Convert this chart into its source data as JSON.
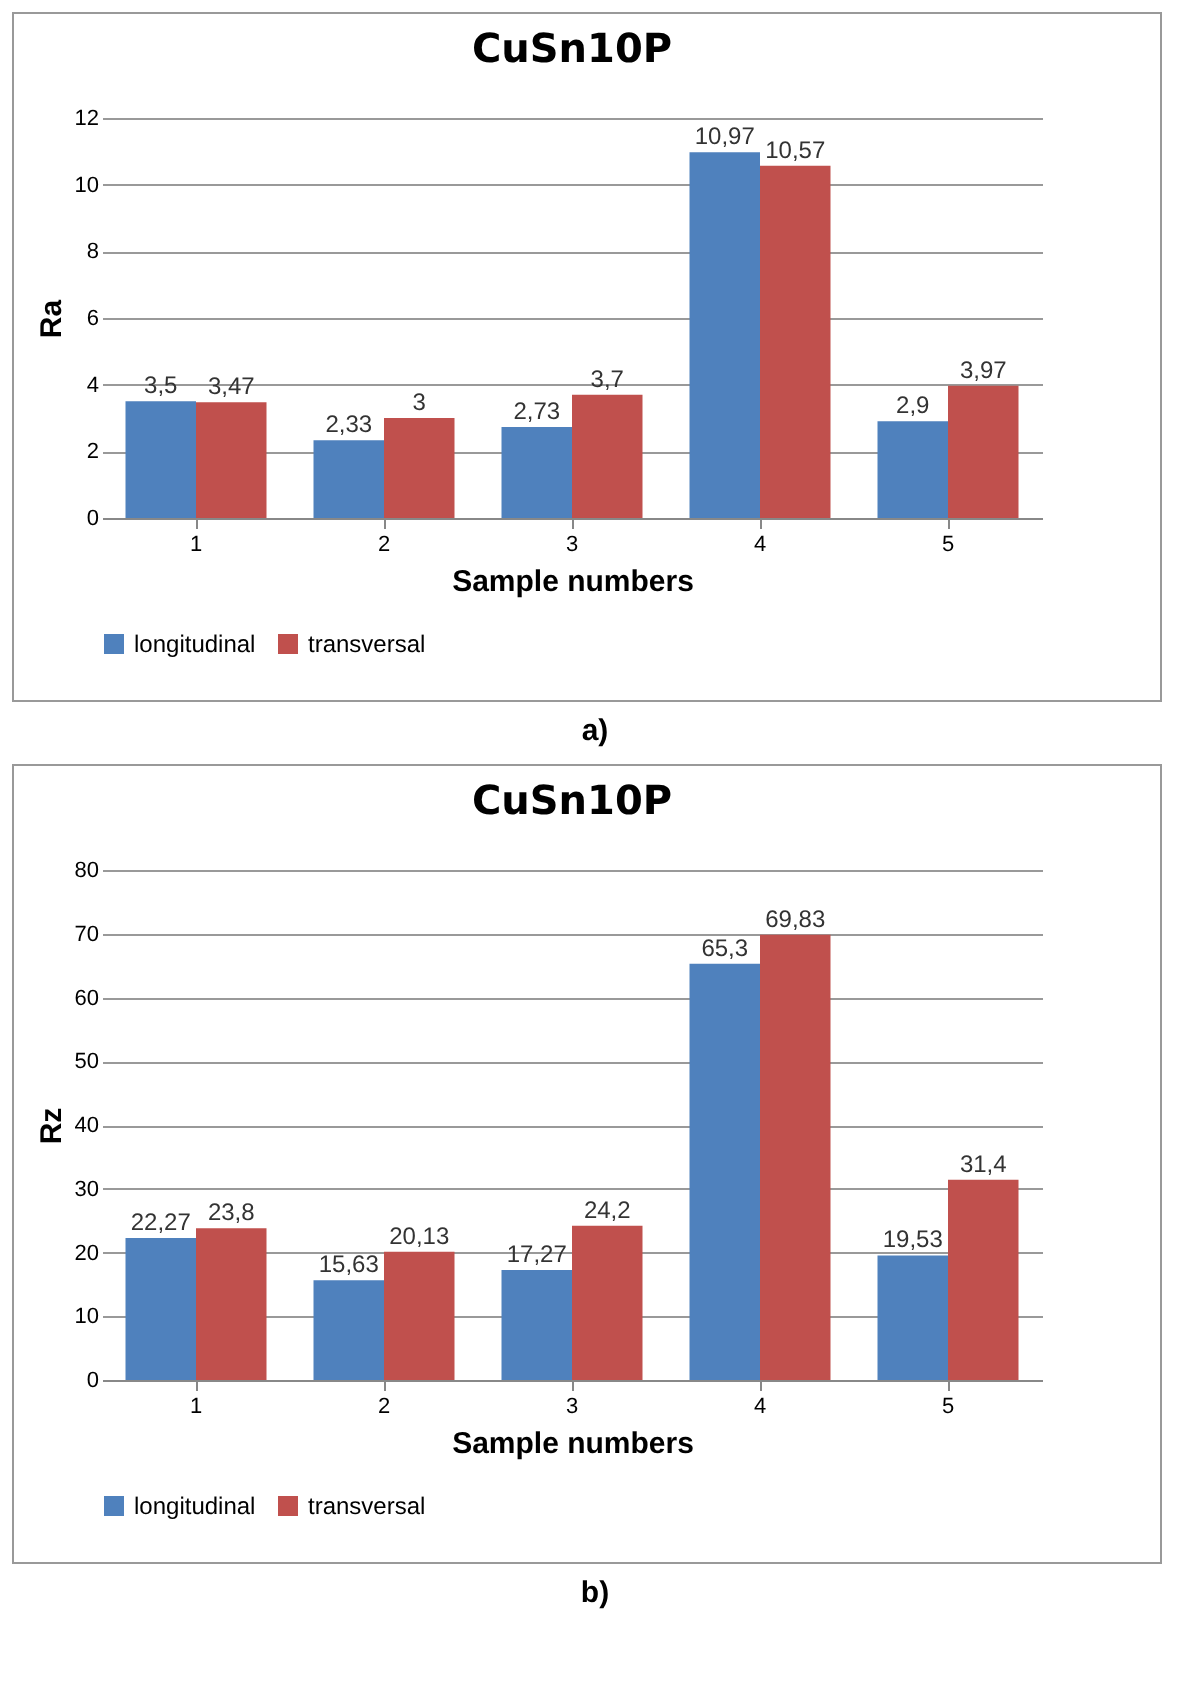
{
  "chart_data": [
    {
      "type": "bar",
      "title": "CuSn10P",
      "xlabel": "Sample numbers",
      "ylabel": "Ra",
      "categories": [
        "1",
        "2",
        "3",
        "4",
        "5"
      ],
      "series": [
        {
          "name": "longitudinal",
          "color": "#4f81bd",
          "values": [
            3.5,
            2.33,
            2.73,
            10.97,
            2.9
          ],
          "value_labels": [
            "3,5",
            "2,33",
            "2,73",
            "10,97",
            "2,9"
          ]
        },
        {
          "name": "transversal",
          "color": "#c0504d",
          "values": [
            3.47,
            3,
            3.7,
            10.57,
            3.97
          ],
          "value_labels": [
            "3,47",
            "3",
            "3,7",
            "10,57",
            "3,97"
          ]
        }
      ],
      "ylim": [
        0,
        12
      ],
      "yticks": [
        0,
        2,
        4,
        6,
        8,
        10,
        12
      ],
      "grid": "y",
      "legend": "bottom",
      "annotations": [
        "a)"
      ]
    },
    {
      "type": "bar",
      "title": "CuSn10P",
      "xlabel": "Sample numbers",
      "ylabel": "Rz",
      "categories": [
        "1",
        "2",
        "3",
        "4",
        "5"
      ],
      "series": [
        {
          "name": "longitudinal",
          "color": "#4f81bd",
          "values": [
            22.27,
            15.63,
            17.27,
            65.3,
            19.53
          ],
          "value_labels": [
            "22,27",
            "15,63",
            "17,27",
            "65,3",
            "19,53"
          ]
        },
        {
          "name": "transversal",
          "color": "#c0504d",
          "values": [
            23.8,
            20.13,
            24.2,
            69.83,
            31.4
          ],
          "value_labels": [
            "23,8",
            "20,13",
            "24,2",
            "69,83",
            "31,4"
          ]
        }
      ],
      "ylim": [
        0,
        80
      ],
      "yticks": [
        0,
        10,
        20,
        30,
        40,
        50,
        60,
        70,
        80
      ],
      "grid": "y",
      "legend": "bottom",
      "annotations": [
        "b)"
      ]
    }
  ]
}
